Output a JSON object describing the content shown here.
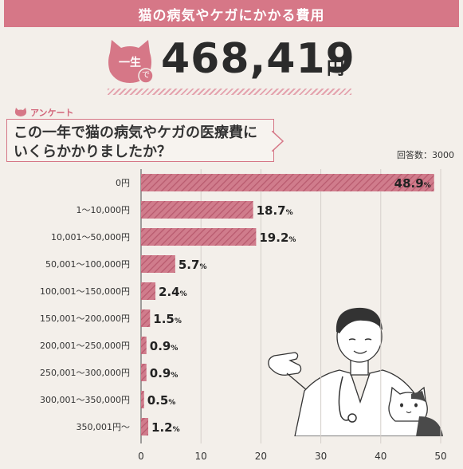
{
  "banner": {
    "title": "猫の病気やケガにかかる費用"
  },
  "lifetime": {
    "badge_main": "一生",
    "badge_sub": "で",
    "total": "468,419",
    "unit": "円"
  },
  "survey": {
    "tag": "アンケート",
    "question_line1": "この一年で猫の病気やケガの医療費に",
    "question_line2": "いくらかかりましたか？",
    "respondents": "回答数：3000"
  },
  "colors": {
    "accent": "#d67787",
    "bar_stripe": "#c8637a",
    "text": "#333333"
  },
  "chart_data": {
    "type": "bar",
    "orientation": "horizontal",
    "categories": [
      "0円",
      "1〜10,000円",
      "10,001〜50,000円",
      "50,001〜100,000円",
      "100,001〜150,000円",
      "150,001〜200,000円",
      "200,001〜250,000円",
      "250,001〜300,000円",
      "300,001〜350,000円",
      "350,001円〜"
    ],
    "values": [
      48.9,
      18.7,
      19.2,
      5.7,
      2.4,
      1.5,
      0.9,
      0.9,
      0.5,
      1.2
    ],
    "value_suffix": "%",
    "xlim": [
      0,
      50
    ],
    "xticks": [
      0,
      10,
      20,
      30,
      40,
      50
    ],
    "grid": true,
    "xlabel": "",
    "ylabel": ""
  }
}
